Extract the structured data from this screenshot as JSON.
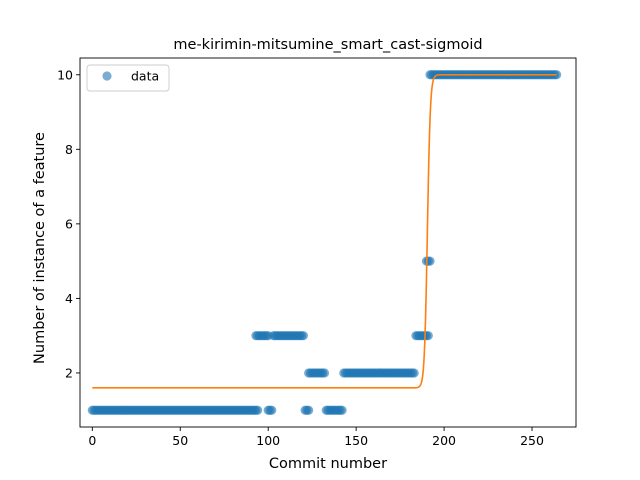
{
  "chart_data": {
    "type": "scatter",
    "title": "me-kirimin-mitsumine_smart_cast-sigmoid",
    "xlabel": "Commit number",
    "ylabel": "Number of instance of a feature",
    "xlim": [
      -7,
      275
    ],
    "ylim": [
      0.55,
      10.45
    ],
    "xticks": [
      0,
      50,
      100,
      150,
      200,
      250
    ],
    "yticks": [
      2,
      4,
      6,
      8,
      10
    ],
    "legend": {
      "position": "top-left",
      "entries": [
        "data"
      ]
    },
    "colors": {
      "data": "#1f77b4",
      "fit": "#ff7f0e"
    },
    "series": [
      {
        "name": "data",
        "kind": "scatter",
        "points": [
          {
            "x_start": 0,
            "x_end": 94,
            "y": 1
          },
          {
            "x_start": 93,
            "x_end": 100,
            "y": 3
          },
          {
            "x_start": 100,
            "x_end": 102,
            "y": 1
          },
          {
            "x_start": 103,
            "x_end": 120,
            "y": 3
          },
          {
            "x_start": 121,
            "x_end": 123,
            "y": 1
          },
          {
            "x_start": 123,
            "x_end": 132,
            "y": 2
          },
          {
            "x_start": 133,
            "x_end": 142,
            "y": 1
          },
          {
            "x_start": 143,
            "x_end": 183,
            "y": 2
          },
          {
            "x_start": 184,
            "x_end": 191,
            "y": 3
          },
          {
            "x_start": 190,
            "x_end": 192,
            "y": 5
          },
          {
            "x_start": 192,
            "x_end": 264,
            "y": 10
          }
        ]
      },
      {
        "kind": "line",
        "sigmoid": {
          "low": 1.6,
          "high": 10.0,
          "midpoint": 190.5,
          "steepness": 1.2
        },
        "x_range": [
          0,
          264
        ]
      }
    ]
  }
}
